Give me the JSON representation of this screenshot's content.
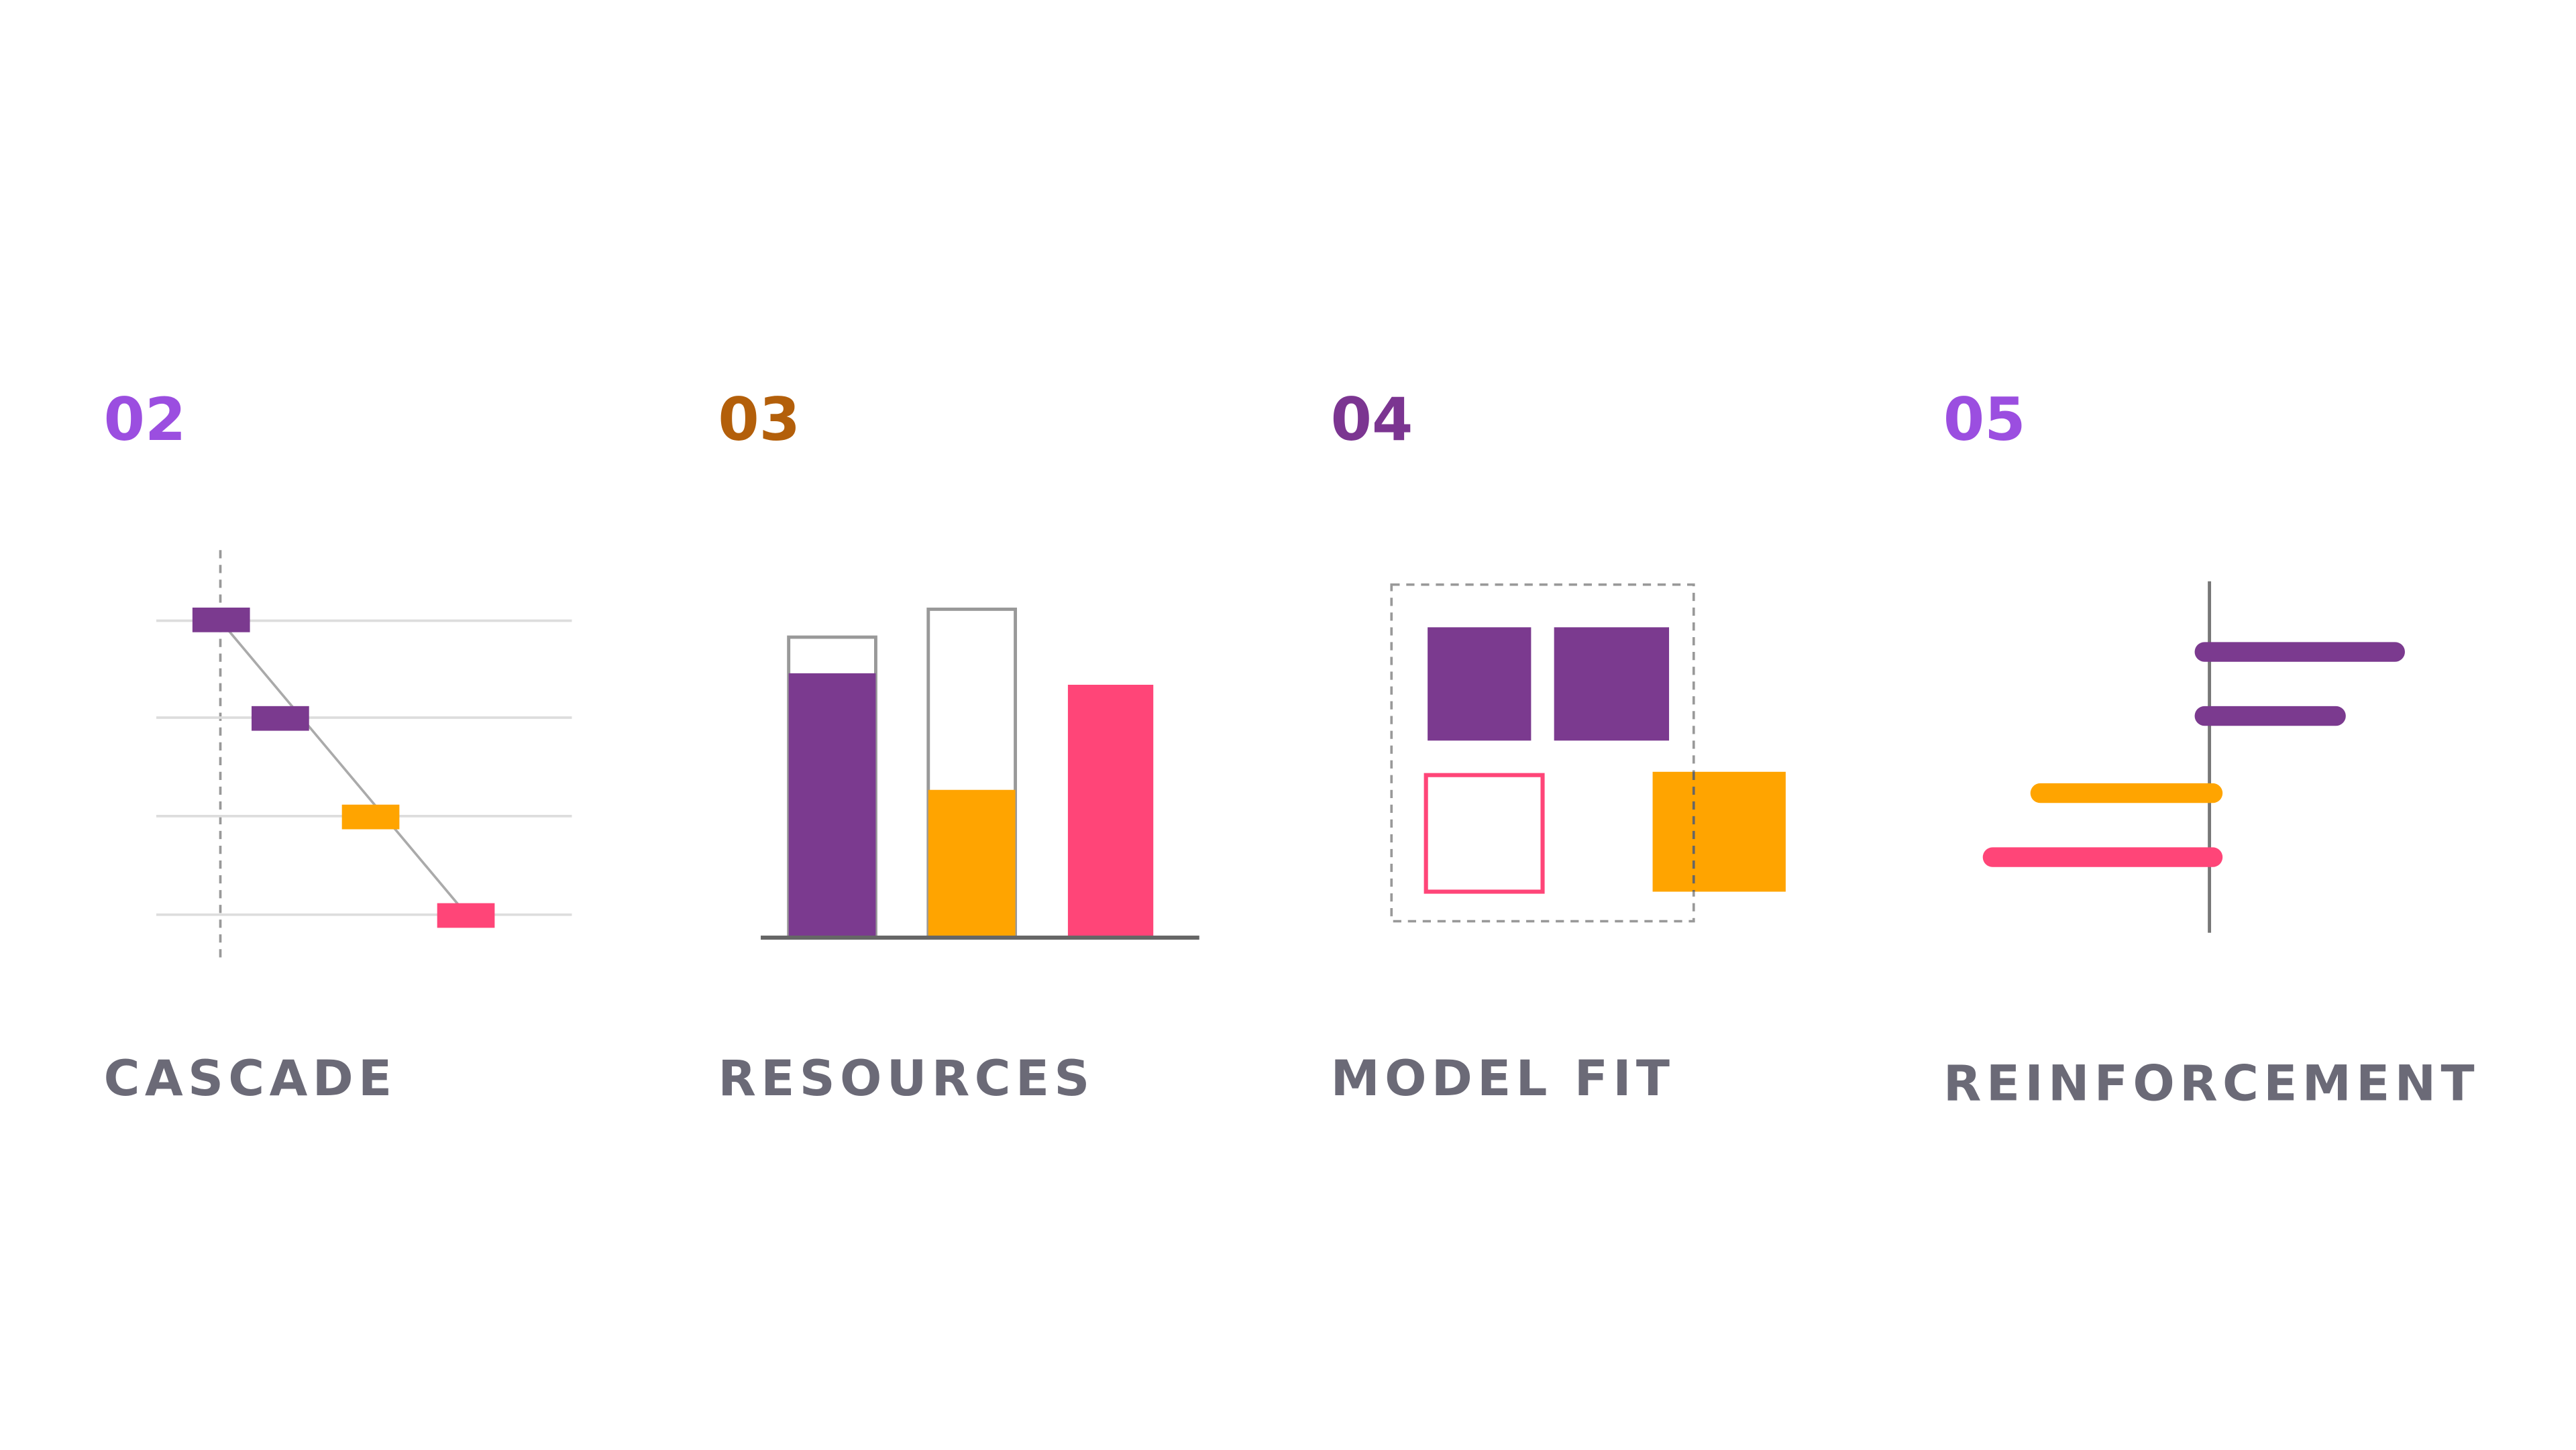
{
  "items": [
    {
      "number": "02",
      "label": "CASCADE"
    },
    {
      "number": "03",
      "label": "RESOURCES"
    },
    {
      "number": "04",
      "label": "MODEL FIT"
    },
    {
      "number": "05",
      "label": "REINFORCEMENT"
    }
  ]
}
